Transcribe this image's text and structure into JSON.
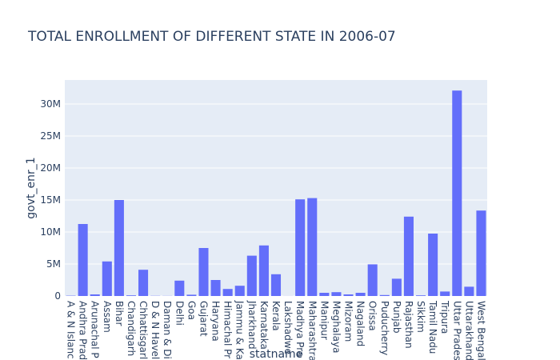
{
  "chart_data": {
    "type": "bar",
    "title": "TOTAL ENROLLMENT OF DIFFERENT STATE IN 2006-07",
    "x_label": "statname",
    "y_label": "govt_enr_1",
    "categories": [
      "A & N Islanc",
      "Andhra Prad",
      "Arunachal P",
      "Assam",
      "Bihar",
      "Chandigarh",
      "Chhattisgarl",
      "D & N Havel",
      "Daman & Di",
      "Delhi",
      "Goa",
      "Gujarat",
      "Haryana",
      "Himachal Pr",
      "Jammu & Ka",
      "Jharkhand",
      "Karnataka",
      "Kerala",
      "Lakshadwe",
      "Madhya Pra",
      "Maharashtra",
      "Manipur",
      "Meghalaya",
      "Mizoram",
      "Nagaland",
      "Orissa",
      "Puducherry",
      "Punjab",
      "Rajasthan",
      "Sikkim",
      "Tamil Nadu",
      "Tripura",
      "Uttar Prades",
      "Uttarakhand",
      "West Bengal"
    ],
    "values": [
      50000,
      11250000,
      250000,
      5400000,
      15000000,
      100000,
      4100000,
      30000,
      20000,
      2400000,
      200000,
      7500000,
      2500000,
      1100000,
      1600000,
      6300000,
      7900000,
      3400000,
      10000,
      15100000,
      15300000,
      500000,
      600000,
      250000,
      500000,
      4950000,
      150000,
      2700000,
      12400000,
      100000,
      9750000,
      700000,
      32100000,
      1450000,
      13350000
    ],
    "color": "#636efa",
    "ylim": [
      0,
      33750000
    ],
    "yticks": [
      0,
      {
        "value": 5000000,
        "label": "5M"
      },
      {
        "value": 10000000,
        "label": "10M"
      },
      {
        "value": 15000000,
        "label": "15M"
      },
      {
        "value": 20000000,
        "label": "20M"
      },
      {
        "value": 25000000,
        "label": "25M"
      },
      {
        "value": 30000000,
        "label": "30M"
      }
    ],
    "grid": true
  }
}
